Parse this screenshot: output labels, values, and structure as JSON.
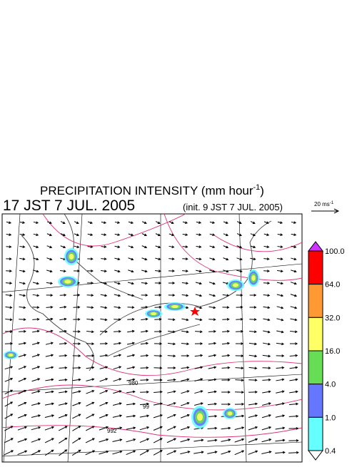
{
  "title": {
    "text": "PRECIPITATION INTENSITY (mm hour",
    "sup": "-1",
    "end": ")"
  },
  "valid_time": "17 JST 7 JUL. 2005",
  "init_time": "(init. 9 JST 7 JUL. 2005)",
  "wind_scale": {
    "text": "20 ms",
    "sup": "-1"
  },
  "colorbar": {
    "labels": [
      "100.0",
      "64.0",
      "32.0",
      "16.0",
      "4.0",
      "1.0",
      "0.4"
    ],
    "colors": [
      "#ff0000",
      "#ff9933",
      "#ffff66",
      "#66dd55",
      "#6677ff",
      "#66ffff"
    ],
    "over_color": "#cc33ff",
    "under_color": "#ffffff"
  },
  "isobar_labels": [
    "980",
    "99",
    "992"
  ]
}
